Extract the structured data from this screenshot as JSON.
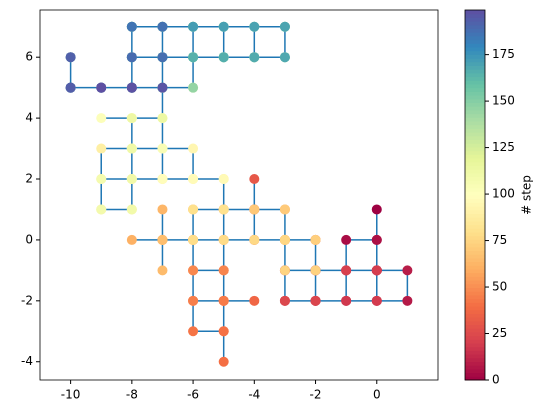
{
  "chart_data": {
    "type": "walk",
    "colorbar_label": "# step",
    "line_color": "#1f77b4",
    "colormap": "Spectral",
    "clim": [
      0,
      199
    ],
    "cticks": [
      0,
      25,
      50,
      75,
      100,
      125,
      150,
      175
    ],
    "xlim": [
      -11,
      2
    ],
    "xticks": [
      -10,
      -8,
      -6,
      -4,
      -2,
      0
    ],
    "ylim": [
      -4.6,
      7.55
    ],
    "yticks": [
      -4,
      -2,
      0,
      2,
      4,
      6
    ],
    "x": [
      0,
      0,
      0,
      -1,
      -1,
      0,
      0,
      0,
      1,
      1,
      0,
      -1,
      -1,
      -2,
      -2,
      -3,
      -3,
      -2,
      -1,
      0,
      0,
      -1,
      -2,
      -2,
      -3,
      -3,
      -2,
      -2,
      -3,
      -4,
      -4,
      -4,
      -4,
      -5,
      -5,
      -5,
      -5,
      -4,
      -5,
      -5,
      -5,
      -5,
      -6,
      -6,
      -5,
      -6,
      -6,
      -5,
      -6,
      -6,
      -5,
      -4,
      -3,
      -2,
      -3,
      -3,
      -4,
      -5,
      -6,
      -6,
      -7,
      -8,
      -7,
      -7,
      -7,
      -7,
      -7,
      -6,
      -5,
      -5,
      -4,
      -3,
      -3,
      -2,
      -2,
      -3,
      -3,
      -4,
      -5,
      -6,
      -6,
      -5,
      -5,
      -6,
      -7,
      -8,
      -8,
      -9,
      -9,
      -9,
      -8,
      -8,
      -7,
      -7,
      -6,
      -6,
      -5,
      -6,
      -7,
      -7,
      -8,
      -8,
      -9,
      -8,
      -7,
      -7,
      -8,
      -8,
      -9,
      -9,
      -8,
      -8,
      -8,
      -8,
      -7,
      -7,
      -6,
      -7,
      -8,
      -8,
      -7,
      -6,
      -6,
      -7,
      -8,
      -8,
      -7,
      -7,
      -8,
      -9,
      -10,
      -10,
      -10,
      -9,
      -8,
      -8,
      -8,
      -7,
      -6,
      -5,
      -4,
      -3,
      -3,
      -4,
      -5,
      -6,
      -6,
      -6,
      -5,
      -4,
      -3,
      -3,
      -4,
      -4,
      -5,
      -5,
      -6,
      -6,
      -7,
      -7,
      -8,
      -8,
      -8,
      -7,
      -7,
      -6,
      -5,
      -4,
      -3,
      -3,
      -4,
      -5,
      -6,
      -7,
      -8,
      -8,
      -7,
      -7,
      -8,
      -9,
      -10,
      -10,
      -10,
      -9,
      -8,
      -8,
      -8,
      -7,
      -7,
      -8,
      -8,
      -9,
      -10,
      -10,
      -10,
      -9,
      -8,
      -7,
      -8,
      -9
    ],
    "y": [
      1,
      0,
      -1,
      -1,
      0,
      0,
      -1,
      -2,
      -2,
      -1,
      -1,
      -1,
      -2,
      -2,
      -1,
      -1,
      -2,
      -2,
      -2,
      -2,
      -1,
      -1,
      -1,
      -2,
      -2,
      -1,
      -1,
      0,
      0,
      0,
      1,
      2,
      1,
      1,
      0,
      -1,
      -2,
      -2,
      -2,
      -3,
      -4,
      -3,
      -3,
      -2,
      -2,
      -2,
      -1,
      -1,
      -1,
      0,
      0,
      0,
      0,
      0,
      0,
      1,
      1,
      1,
      1,
      0,
      0,
      0,
      0,
      1,
      0,
      -1,
      0,
      0,
      0,
      1,
      1,
      1,
      0,
      0,
      -1,
      -1,
      0,
      0,
      0,
      0,
      1,
      1,
      2,
      2,
      2,
      2,
      1,
      1,
      2,
      3,
      3,
      2,
      2,
      3,
      3,
      2,
      2,
      2,
      2,
      3,
      3,
      4,
      4,
      4,
      4,
      3,
      3,
      2,
      2,
      1,
      1,
      2,
      3,
      4,
      4,
      5,
      5,
      5,
      5,
      6,
      6,
      6,
      7,
      7,
      7,
      6,
      6,
      5,
      5,
      5,
      5,
      6,
      5,
      5,
      5,
      6,
      7,
      7,
      7,
      7,
      7,
      7,
      6,
      6,
      6,
      6,
      5,
      6,
      6,
      6,
      6,
      7,
      7,
      6,
      6,
      7,
      7,
      6,
      6,
      7,
      7,
      6,
      5,
      5,
      6,
      6,
      6,
      6,
      6,
      7,
      7,
      7,
      7,
      7,
      7,
      6,
      6,
      5,
      5,
      5,
      5,
      6,
      5,
      5,
      5,
      6,
      7,
      7,
      6,
      6,
      5,
      5,
      5,
      6,
      5,
      5,
      5,
      5,
      5,
      5
    ]
  }
}
